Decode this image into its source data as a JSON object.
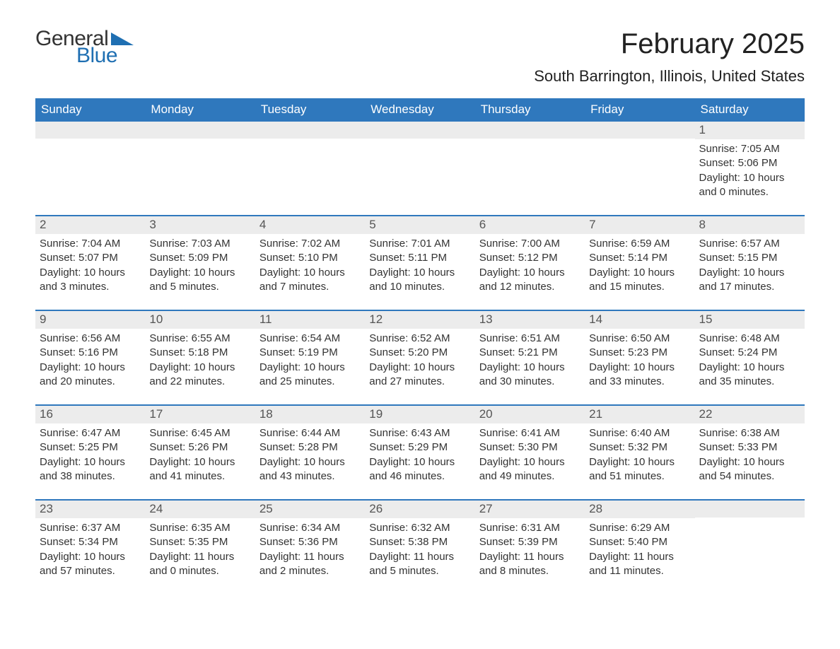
{
  "logo": {
    "word1": "General",
    "word2": "Blue",
    "tri_color": "#1f6fb2"
  },
  "title": "February 2025",
  "location": "South Barrington, Illinois, United States",
  "colors": {
    "header_bg": "#2f78bd",
    "header_text": "#ffffff",
    "daynum_bg": "#ececec",
    "daynum_text": "#555555",
    "body_text": "#333333",
    "rule": "#2f78bd"
  },
  "dow": [
    "Sunday",
    "Monday",
    "Tuesday",
    "Wednesday",
    "Thursday",
    "Friday",
    "Saturday"
  ],
  "weeks": [
    [
      null,
      null,
      null,
      null,
      null,
      null,
      {
        "n": "1",
        "sr": "7:05 AM",
        "ss": "5:06 PM",
        "dl": "10 hours and 0 minutes."
      }
    ],
    [
      {
        "n": "2",
        "sr": "7:04 AM",
        "ss": "5:07 PM",
        "dl": "10 hours and 3 minutes."
      },
      {
        "n": "3",
        "sr": "7:03 AM",
        "ss": "5:09 PM",
        "dl": "10 hours and 5 minutes."
      },
      {
        "n": "4",
        "sr": "7:02 AM",
        "ss": "5:10 PM",
        "dl": "10 hours and 7 minutes."
      },
      {
        "n": "5",
        "sr": "7:01 AM",
        "ss": "5:11 PM",
        "dl": "10 hours and 10 minutes."
      },
      {
        "n": "6",
        "sr": "7:00 AM",
        "ss": "5:12 PM",
        "dl": "10 hours and 12 minutes."
      },
      {
        "n": "7",
        "sr": "6:59 AM",
        "ss": "5:14 PM",
        "dl": "10 hours and 15 minutes."
      },
      {
        "n": "8",
        "sr": "6:57 AM",
        "ss": "5:15 PM",
        "dl": "10 hours and 17 minutes."
      }
    ],
    [
      {
        "n": "9",
        "sr": "6:56 AM",
        "ss": "5:16 PM",
        "dl": "10 hours and 20 minutes."
      },
      {
        "n": "10",
        "sr": "6:55 AM",
        "ss": "5:18 PM",
        "dl": "10 hours and 22 minutes."
      },
      {
        "n": "11",
        "sr": "6:54 AM",
        "ss": "5:19 PM",
        "dl": "10 hours and 25 minutes."
      },
      {
        "n": "12",
        "sr": "6:52 AM",
        "ss": "5:20 PM",
        "dl": "10 hours and 27 minutes."
      },
      {
        "n": "13",
        "sr": "6:51 AM",
        "ss": "5:21 PM",
        "dl": "10 hours and 30 minutes."
      },
      {
        "n": "14",
        "sr": "6:50 AM",
        "ss": "5:23 PM",
        "dl": "10 hours and 33 minutes."
      },
      {
        "n": "15",
        "sr": "6:48 AM",
        "ss": "5:24 PM",
        "dl": "10 hours and 35 minutes."
      }
    ],
    [
      {
        "n": "16",
        "sr": "6:47 AM",
        "ss": "5:25 PM",
        "dl": "10 hours and 38 minutes."
      },
      {
        "n": "17",
        "sr": "6:45 AM",
        "ss": "5:26 PM",
        "dl": "10 hours and 41 minutes."
      },
      {
        "n": "18",
        "sr": "6:44 AM",
        "ss": "5:28 PM",
        "dl": "10 hours and 43 minutes."
      },
      {
        "n": "19",
        "sr": "6:43 AM",
        "ss": "5:29 PM",
        "dl": "10 hours and 46 minutes."
      },
      {
        "n": "20",
        "sr": "6:41 AM",
        "ss": "5:30 PM",
        "dl": "10 hours and 49 minutes."
      },
      {
        "n": "21",
        "sr": "6:40 AM",
        "ss": "5:32 PM",
        "dl": "10 hours and 51 minutes."
      },
      {
        "n": "22",
        "sr": "6:38 AM",
        "ss": "5:33 PM",
        "dl": "10 hours and 54 minutes."
      }
    ],
    [
      {
        "n": "23",
        "sr": "6:37 AM",
        "ss": "5:34 PM",
        "dl": "10 hours and 57 minutes."
      },
      {
        "n": "24",
        "sr": "6:35 AM",
        "ss": "5:35 PM",
        "dl": "11 hours and 0 minutes."
      },
      {
        "n": "25",
        "sr": "6:34 AM",
        "ss": "5:36 PM",
        "dl": "11 hours and 2 minutes."
      },
      {
        "n": "26",
        "sr": "6:32 AM",
        "ss": "5:38 PM",
        "dl": "11 hours and 5 minutes."
      },
      {
        "n": "27",
        "sr": "6:31 AM",
        "ss": "5:39 PM",
        "dl": "11 hours and 8 minutes."
      },
      {
        "n": "28",
        "sr": "6:29 AM",
        "ss": "5:40 PM",
        "dl": "11 hours and 11 minutes."
      },
      null
    ]
  ],
  "labels": {
    "sunrise": "Sunrise: ",
    "sunset": "Sunset: ",
    "daylight": "Daylight: "
  }
}
